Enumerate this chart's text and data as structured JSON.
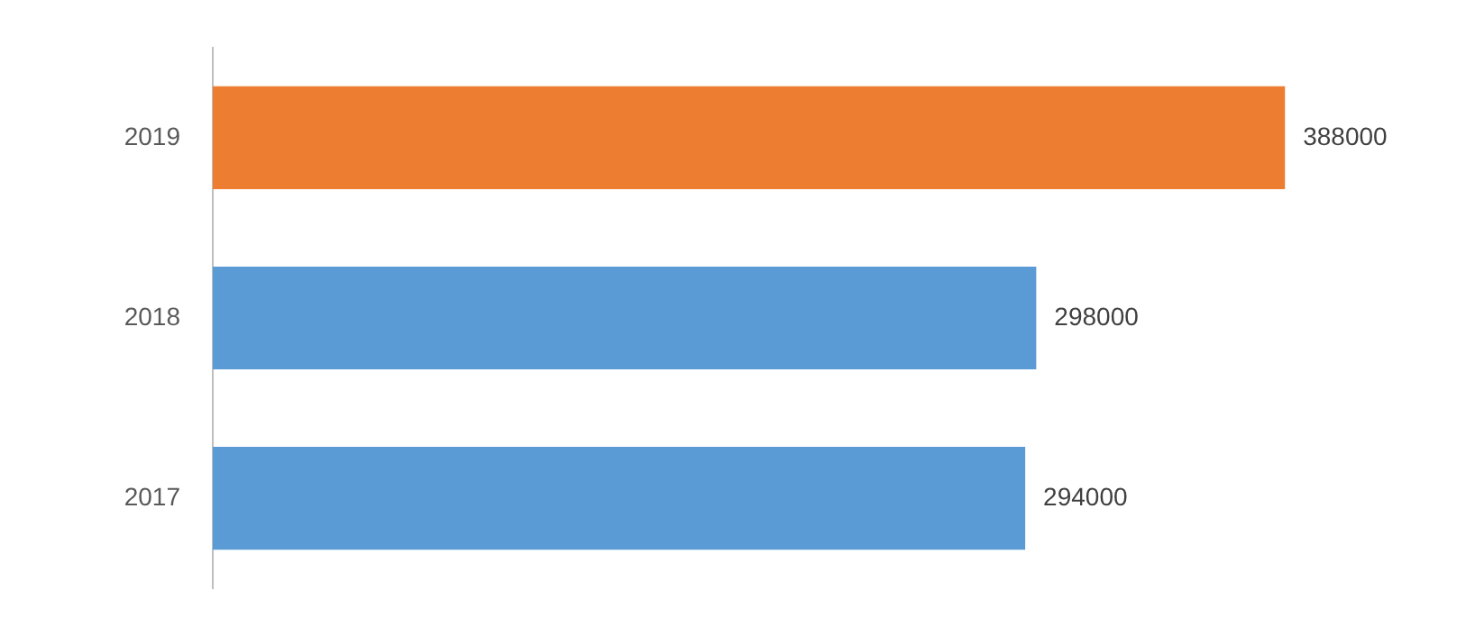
{
  "chart_data": {
    "type": "bar",
    "orientation": "horizontal",
    "categories": [
      "2019",
      "2018",
      "2017"
    ],
    "values": [
      388000,
      298000,
      294000
    ],
    "colors": [
      "#ed7d31",
      "#5b9bd5",
      "#5b9bd5"
    ],
    "tick_labels": "y",
    "grid": false,
    "legend": false,
    "data_labels": true
  }
}
